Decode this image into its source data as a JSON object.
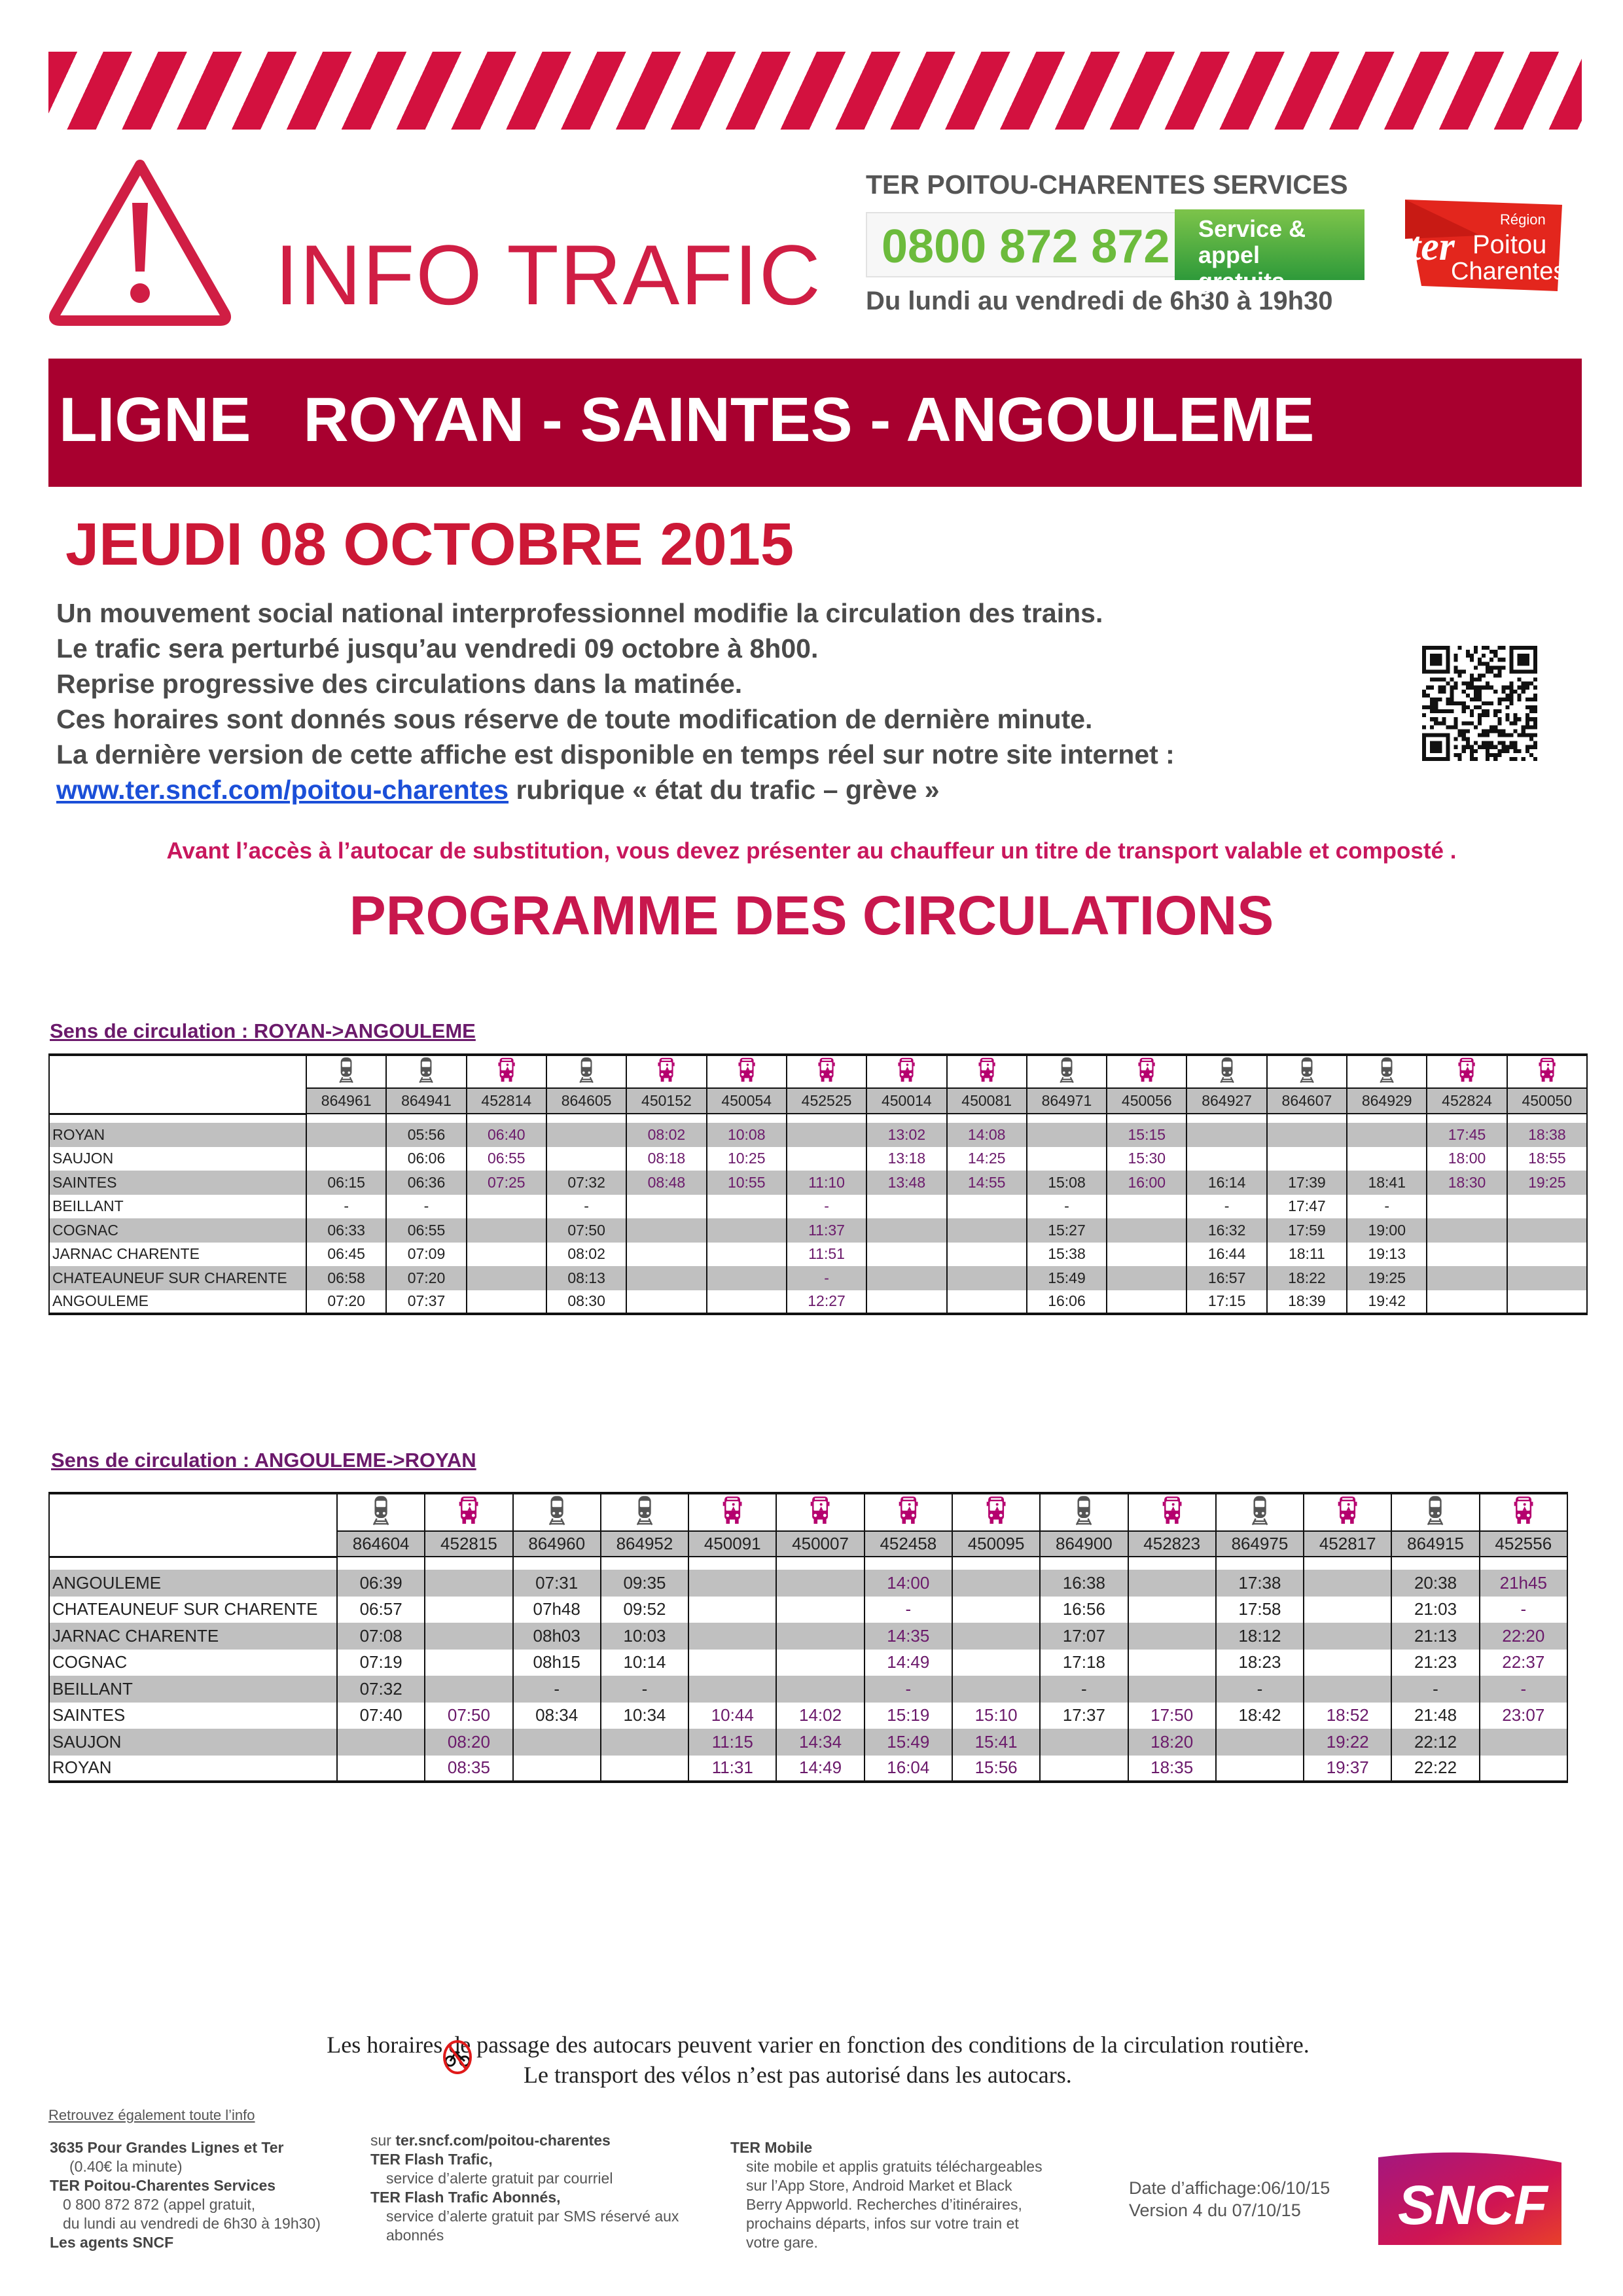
{
  "header": {
    "info_trafic": "INFO TRAFIC",
    "services_title": "TER POITOU-CHARENTES SERVICES",
    "phone": "0800 872 872",
    "phone_badge_line1": "Service & appel",
    "phone_badge_line2": "gratuits",
    "hours": "Du lundi au vendredi de 6h30 à 19h30",
    "logo_text": {
      "region": "Région",
      "ter": "ter",
      "poitou": "Poitou",
      "charentes": "Charentes"
    }
  },
  "banner": {
    "title": "LIGNE   ROYAN - SAINTES - ANGOULEME"
  },
  "date": "JEUDI 08 OCTOBRE 2015",
  "intro": {
    "lines": [
      "Un mouvement social national interprofessionnel modifie la circulation des trains.",
      "Le trafic sera perturbé jusqu’au vendredi 09 octobre à 8h00.",
      "Reprise progressive des circulations dans la matinée.",
      "Ces horaires sont donnés sous réserve de toute modification de dernière minute.",
      "La dernière version de cette affiche est disponible en temps réel sur notre site internet :"
    ],
    "link": "www.ter.sncf.com/poitou-charentes",
    "link_suffix": " rubrique  « état du trafic – grève »"
  },
  "notice": "Avant l’accès à l’autocar de substitution, vous devez présenter au chauffeur un titre de transport valable et composté .",
  "programme_title": "PROGRAMME DES CIRCULATIONS",
  "colors": {
    "stripe": "#d3113f",
    "banner": "#a8002f",
    "bus": "#b5006e",
    "bus_time": "#6b1a6b",
    "train": "#555555",
    "shade": "#c0c0c0"
  },
  "tables": [
    {
      "title": "Sens de circulation : ROYAN->ANGOULEME",
      "columns": [
        {
          "number": "864961",
          "mode": "train"
        },
        {
          "number": "864941",
          "mode": "train"
        },
        {
          "number": "452814",
          "mode": "bus"
        },
        {
          "number": "864605",
          "mode": "train"
        },
        {
          "number": "450152",
          "mode": "bus"
        },
        {
          "number": "450054",
          "mode": "bus"
        },
        {
          "number": "452525",
          "mode": "bus"
        },
        {
          "number": "450014",
          "mode": "bus"
        },
        {
          "number": "450081",
          "mode": "bus"
        },
        {
          "number": "864971",
          "mode": "train"
        },
        {
          "number": "450056",
          "mode": "bus"
        },
        {
          "number": "864927",
          "mode": "train"
        },
        {
          "number": "864607",
          "mode": "train"
        },
        {
          "number": "864929",
          "mode": "train"
        },
        {
          "number": "452824",
          "mode": "bus"
        },
        {
          "number": "450050",
          "mode": "bus"
        }
      ],
      "rows": [
        {
          "station": "ROYAN",
          "times": [
            "",
            "05:56",
            "06:40",
            "",
            "08:02",
            "10:08",
            "",
            "13:02",
            "14:08",
            "",
            "15:15",
            "",
            "",
            "",
            "17:45",
            "18:38"
          ]
        },
        {
          "station": "SAUJON",
          "times": [
            "",
            "06:06",
            "06:55",
            "",
            "08:18",
            "10:25",
            "",
            "13:18",
            "14:25",
            "",
            "15:30",
            "",
            "",
            "",
            "18:00",
            "18:55"
          ]
        },
        {
          "station": "SAINTES",
          "times": [
            "06:15",
            "06:36",
            "07:25",
            "07:32",
            "08:48",
            "10:55",
            "11:10",
            "13:48",
            "14:55",
            "15:08",
            "16:00",
            "16:14",
            "17:39",
            "18:41",
            "18:30",
            "19:25"
          ]
        },
        {
          "station": "BEILLANT",
          "times": [
            "-",
            "-",
            "",
            "-",
            "",
            "",
            "-",
            "",
            "",
            "-",
            "",
            "-",
            "17:47",
            "-",
            "",
            ""
          ]
        },
        {
          "station": "COGNAC",
          "times": [
            "06:33",
            "06:55",
            "",
            "07:50",
            "",
            "",
            "11:37",
            "",
            "",
            "15:27",
            "",
            "16:32",
            "17:59",
            "19:00",
            "",
            ""
          ]
        },
        {
          "station": "JARNAC CHARENTE",
          "times": [
            "06:45",
            "07:09",
            "",
            "08:02",
            "",
            "",
            "11:51",
            "",
            "",
            "15:38",
            "",
            "16:44",
            "18:11",
            "19:13",
            "",
            ""
          ]
        },
        {
          "station": "CHATEAUNEUF SUR CHARENTE",
          "times": [
            "06:58",
            "07:20",
            "",
            "08:13",
            "",
            "",
            "-",
            "",
            "",
            "15:49",
            "",
            "16:57",
            "18:22",
            "19:25",
            "",
            ""
          ]
        },
        {
          "station": "ANGOULEME",
          "times": [
            "07:20",
            "07:37",
            "",
            "08:30",
            "",
            "",
            "12:27",
            "",
            "",
            "16:06",
            "",
            "17:15",
            "18:39",
            "19:42",
            "",
            ""
          ]
        }
      ]
    },
    {
      "title": "Sens de circulation : ANGOULEME->ROYAN",
      "columns": [
        {
          "number": "864604",
          "mode": "train"
        },
        {
          "number": "452815",
          "mode": "bus"
        },
        {
          "number": "864960",
          "mode": "train"
        },
        {
          "number": "864952",
          "mode": "train"
        },
        {
          "number": "450091",
          "mode": "bus"
        },
        {
          "number": "450007",
          "mode": "bus"
        },
        {
          "number": "452458",
          "mode": "bus"
        },
        {
          "number": "450095",
          "mode": "bus"
        },
        {
          "number": "864900",
          "mode": "train"
        },
        {
          "number": "452823",
          "mode": "bus"
        },
        {
          "number": "864975",
          "mode": "train"
        },
        {
          "number": "452817",
          "mode": "bus"
        },
        {
          "number": "864915",
          "mode": "train"
        },
        {
          "number": "452556",
          "mode": "bus"
        }
      ],
      "rows": [
        {
          "station": "ANGOULEME",
          "times": [
            "06:39",
            "",
            "07:31",
            "09:35",
            "",
            "",
            "14:00",
            "",
            "16:38",
            "",
            "17:38",
            "",
            "20:38",
            "21h45"
          ]
        },
        {
          "station": "CHATEAUNEUF SUR CHARENTE",
          "times": [
            "06:57",
            "",
            "07h48",
            "09:52",
            "",
            "",
            "-",
            "",
            "16:56",
            "",
            "17:58",
            "",
            "21:03",
            "-"
          ]
        },
        {
          "station": "JARNAC CHARENTE",
          "times": [
            "07:08",
            "",
            "08h03",
            "10:03",
            "",
            "",
            "14:35",
            "",
            "17:07",
            "",
            "18:12",
            "",
            "21:13",
            "22:20"
          ]
        },
        {
          "station": "COGNAC",
          "times": [
            "07:19",
            "",
            "08h15",
            "10:14",
            "",
            "",
            "14:49",
            "",
            "17:18",
            "",
            "18:23",
            "",
            "21:23",
            "22:37"
          ]
        },
        {
          "station": "BEILLANT",
          "times": [
            "07:32",
            "",
            "-",
            "-",
            "",
            "",
            "-",
            "",
            "-",
            "",
            "-",
            "",
            "-",
            "-"
          ]
        },
        {
          "station": "SAINTES",
          "times": [
            "07:40",
            "07:50",
            "08:34",
            "10:34",
            "10:44",
            "14:02",
            "15:19",
            "15:10",
            "17:37",
            "17:50",
            "18:42",
            "18:52",
            "21:48",
            "23:07"
          ]
        },
        {
          "station": "SAUJON",
          "times": [
            "",
            "08:20",
            "",
            "",
            "11:15",
            "14:34",
            "15:49",
            "15:41",
            "",
            "18:20",
            "",
            "19:22",
            "22:12",
            ""
          ]
        },
        {
          "station": "ROYAN",
          "times": [
            "",
            "08:35",
            "",
            "",
            "11:31",
            "14:49",
            "16:04",
            "15:56",
            "",
            "18:35",
            "",
            "19:37",
            "22:22",
            ""
          ]
        }
      ]
    }
  ],
  "footer": {
    "line1": "Les horaires de passage des autocars peuvent varier en fonction des conditions de la circulation routière.",
    "line2": "Le transport des vélos n’est pas autorisé dans les autocars.",
    "retrouvez": "Retrouvez également toute l’info",
    "col1": [
      "3635 Pour Grandes Lignes et Ter",
      "(0.40€ la minute)",
      "TER Poitou-Charentes Services",
      "0 800 872 872 (appel gratuit,",
      "du lundi au vendredi de 6h30 à 19h30)",
      "Les agents SNCF"
    ],
    "col2_prefix": "sur ",
    "col2_site": "ter.sncf.com/poitou-charentes",
    "col2": [
      "TER Flash Trafic,",
      "service d’alerte gratuit par courriel",
      "TER Flash Trafic Abonnés,",
      "service d’alerte gratuit par SMS réservé aux",
      "abonnés"
    ],
    "col3": [
      "TER Mobile",
      "site mobile et applis gratuits téléchargeables",
      "sur l’App Store, Android Market et Black",
      "Berry Appworld. Recherches d’itinéraires,",
      "prochains départs, infos sur votre train et",
      "votre gare."
    ],
    "display_date": "Date d’affichage:06/10/15",
    "version": "Version 4 du 07/10/15",
    "sncf_logo": "SNCF"
  }
}
